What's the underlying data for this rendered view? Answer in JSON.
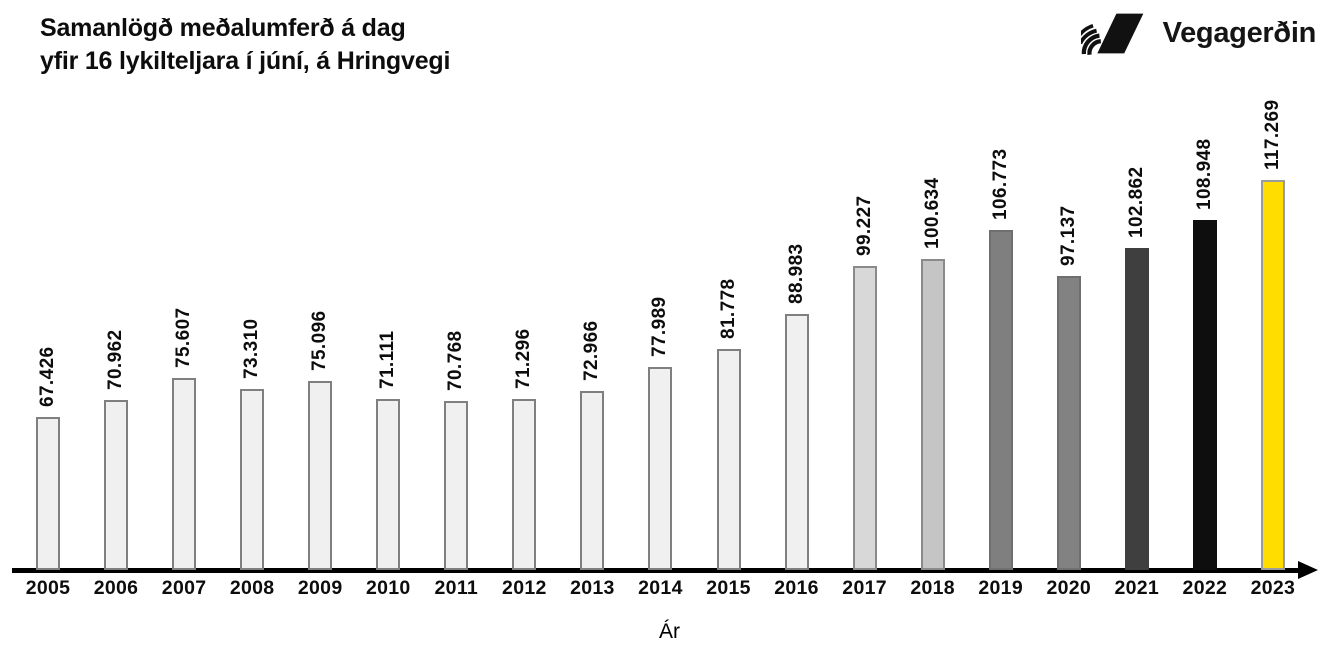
{
  "page": {
    "background": "#ffffff"
  },
  "header": {
    "title_line1": "Samanlögð meðalumferð á dag",
    "title_line2": "yfir 16 lykilteljara í júní, á Hringvegi",
    "logo": {
      "text": "Vegagerðin",
      "icon": "vegagerdin-mark-icon",
      "color": "#111111"
    }
  },
  "chart_data": {
    "type": "bar",
    "title": "Samanlögð meðalumferð á dag yfir 16 lykilteljara í júní, á Hringvegi",
    "xlabel": "Ár",
    "ylabel": "",
    "grid": false,
    "legend": false,
    "axis_color": "#000000",
    "highlight_color": "#ffdd00",
    "ylim": [
      35245,
      118000
    ],
    "categories": [
      "2005",
      "2006",
      "2007",
      "2008",
      "2009",
      "2010",
      "2011",
      "2012",
      "2013",
      "2014",
      "2015",
      "2016",
      "2017",
      "2018",
      "2019",
      "2020",
      "2021",
      "2022",
      "2023"
    ],
    "values": [
      67426,
      70962,
      75607,
      73310,
      75096,
      71111,
      70768,
      71296,
      72966,
      77989,
      81778,
      88983,
      99227,
      100634,
      106773,
      97137,
      102862,
      108948,
      117269
    ],
    "value_labels": [
      "67.426",
      "70.962",
      "75.607",
      "73.310",
      "75.096",
      "71.111",
      "70.768",
      "71.296",
      "72.966",
      "77.989",
      "81.778",
      "88.983",
      "99.227",
      "100.634",
      "106.773",
      "97.137",
      "102.862",
      "108.948",
      "117.269"
    ],
    "bar_colors": [
      "#f0f0f0",
      "#f0f0f0",
      "#f0f0f0",
      "#f0f0f0",
      "#f0f0f0",
      "#f0f0f0",
      "#f0f0f0",
      "#f0f0f0",
      "#f0f0f0",
      "#f0f0f0",
      "#f0f0f0",
      "#f0f0f0",
      "#d8d8d8",
      "#c5c5c5",
      "#7f7f7f",
      "#828282",
      "#3f3f3f",
      "#0e0e0e",
      "#ffdd00"
    ],
    "bar_border_colors": [
      "#7f7f7f",
      "#7f7f7f",
      "#7f7f7f",
      "#7f7f7f",
      "#7f7f7f",
      "#7f7f7f",
      "#7f7f7f",
      "#7f7f7f",
      "#7f7f7f",
      "#7f7f7f",
      "#7f7f7f",
      "#7f7f7f",
      "#8a8a8a",
      "#8a8a8a",
      "#6f6f6f",
      "#6f6f6f",
      "#3f3f3f",
      "#0e0e0e",
      "#9b9b9b"
    ]
  }
}
